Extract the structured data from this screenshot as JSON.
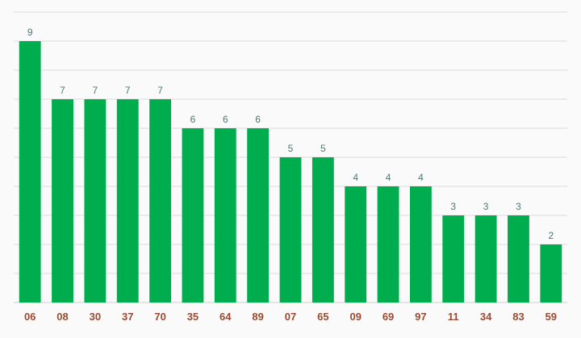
{
  "chart_data": {
    "type": "bar",
    "categories": [
      "06",
      "08",
      "30",
      "37",
      "70",
      "35",
      "64",
      "89",
      "07",
      "65",
      "09",
      "69",
      "97",
      "11",
      "34",
      "83",
      "59"
    ],
    "values": [
      9,
      7,
      7,
      7,
      7,
      6,
      6,
      6,
      5,
      5,
      4,
      4,
      4,
      3,
      3,
      3,
      2
    ],
    "title": "",
    "xlabel": "",
    "ylabel": "",
    "ylim": [
      0,
      10
    ],
    "grid": true,
    "grid_step": 1,
    "bar_color": "#00ad4e",
    "tick_label_color": "#9a4a30",
    "value_label_color": "#4a7a78",
    "data_labels": true
  }
}
